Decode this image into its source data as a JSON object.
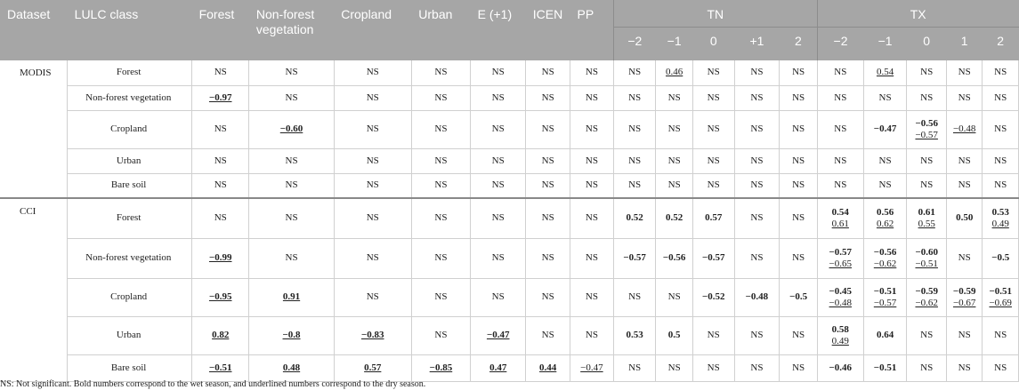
{
  "table": {
    "headers": {
      "dataset": "Dataset",
      "lulc_class": "LULC class",
      "forest": "Forest",
      "non_forest": "Non-forest vegetation",
      "cropland": "Cropland",
      "urban": "Urban",
      "e": "E (+1)",
      "icen": "ICEN",
      "pp": "PP",
      "tn": "TN",
      "tx": "TX",
      "tn_lags": [
        "−2",
        "−1",
        "0",
        "+1",
        "2"
      ],
      "tx_lags": [
        "−2",
        "−1",
        "0",
        "1",
        "2"
      ]
    },
    "datasets": [
      {
        "name": "MODIS",
        "rows": [
          {
            "class": "Forest",
            "cells": [
              [
                "NS"
              ],
              [
                "NS"
              ],
              [
                "NS"
              ],
              [
                "NS"
              ],
              [
                "NS"
              ],
              [
                "NS"
              ],
              [
                "NS"
              ],
              [
                "NS"
              ],
              [
                [
                  "0.46",
                  "u"
                ]
              ],
              [
                "NS"
              ],
              [
                "NS"
              ],
              [
                "NS"
              ],
              [
                "NS"
              ],
              [
                [
                  "0.54",
                  "u"
                ]
              ],
              [
                "NS"
              ],
              [
                "NS"
              ],
              [
                "NS"
              ]
            ]
          },
          {
            "class": "Non-forest vegetation",
            "cells": [
              [
                [
                  "−0.97",
                  "bu"
                ]
              ],
              [
                "NS"
              ],
              [
                "NS"
              ],
              [
                "NS"
              ],
              [
                "NS"
              ],
              [
                "NS"
              ],
              [
                "NS"
              ],
              [
                "NS"
              ],
              [
                "NS"
              ],
              [
                "NS"
              ],
              [
                "NS"
              ],
              [
                "NS"
              ],
              [
                "NS"
              ],
              [
                "NS"
              ],
              [
                "NS"
              ],
              [
                "NS"
              ],
              [
                "NS"
              ]
            ]
          },
          {
            "class": "Cropland",
            "cells": [
              [
                "NS"
              ],
              [
                [
                  "−0.60",
                  "bu"
                ]
              ],
              [
                "NS"
              ],
              [
                "NS"
              ],
              [
                "NS"
              ],
              [
                "NS"
              ],
              [
                "NS"
              ],
              [
                "NS"
              ],
              [
                "NS"
              ],
              [
                "NS"
              ],
              [
                "NS"
              ],
              [
                "NS"
              ],
              [
                "NS"
              ],
              [
                [
                  "−0.47",
                  "b"
                ]
              ],
              [
                [
                  "−0.56",
                  "b"
                ],
                [
                  "−0.57",
                  "u"
                ]
              ],
              [
                [
                  "−0.48",
                  "u"
                ]
              ],
              [
                "NS"
              ]
            ]
          },
          {
            "class": "Urban",
            "cells": [
              [
                "NS"
              ],
              [
                "NS"
              ],
              [
                "NS"
              ],
              [
                "NS"
              ],
              [
                "NS"
              ],
              [
                "NS"
              ],
              [
                "NS"
              ],
              [
                "NS"
              ],
              [
                "NS"
              ],
              [
                "NS"
              ],
              [
                "NS"
              ],
              [
                "NS"
              ],
              [
                "NS"
              ],
              [
                "NS"
              ],
              [
                "NS"
              ],
              [
                "NS"
              ],
              [
                "NS"
              ]
            ]
          },
          {
            "class": "Bare soil",
            "cells": [
              [
                "NS"
              ],
              [
                "NS"
              ],
              [
                "NS"
              ],
              [
                "NS"
              ],
              [
                "NS"
              ],
              [
                "NS"
              ],
              [
                "NS"
              ],
              [
                "NS"
              ],
              [
                "NS"
              ],
              [
                "NS"
              ],
              [
                "NS"
              ],
              [
                "NS"
              ],
              [
                "NS"
              ],
              [
                "NS"
              ],
              [
                "NS"
              ],
              [
                "NS"
              ],
              [
                "NS"
              ]
            ]
          }
        ]
      },
      {
        "name": "CCI",
        "rows": [
          {
            "class": "Forest",
            "cells": [
              [
                "NS"
              ],
              [
                "NS"
              ],
              [
                "NS"
              ],
              [
                "NS"
              ],
              [
                "NS"
              ],
              [
                "NS"
              ],
              [
                "NS"
              ],
              [
                [
                  "0.52",
                  "b"
                ]
              ],
              [
                [
                  "0.52",
                  "b"
                ]
              ],
              [
                [
                  "0.57",
                  "b"
                ]
              ],
              [
                "NS"
              ],
              [
                "NS"
              ],
              [
                [
                  "0.54",
                  "b"
                ],
                [
                  "0.61",
                  "u"
                ]
              ],
              [
                [
                  "0.56",
                  "b"
                ],
                [
                  "0.62",
                  "u"
                ]
              ],
              [
                [
                  "0.61",
                  "b"
                ],
                [
                  "0.55",
                  "u"
                ]
              ],
              [
                [
                  "0.50",
                  "b"
                ]
              ],
              [
                [
                  "0.53",
                  "b"
                ],
                [
                  "0.49",
                  "u"
                ]
              ]
            ]
          },
          {
            "class": "Non-forest vegetation",
            "cells": [
              [
                [
                  "−0.99",
                  "bu"
                ]
              ],
              [
                "NS"
              ],
              [
                "NS"
              ],
              [
                "NS"
              ],
              [
                "NS"
              ],
              [
                "NS"
              ],
              [
                "NS"
              ],
              [
                [
                  "−0.57",
                  "b"
                ]
              ],
              [
                [
                  "−0.56",
                  "b"
                ]
              ],
              [
                [
                  "−0.57",
                  "b"
                ]
              ],
              [
                "NS"
              ],
              [
                "NS"
              ],
              [
                [
                  "−0.57",
                  "b"
                ],
                [
                  "−0.65",
                  "u"
                ]
              ],
              [
                [
                  "−0.56",
                  "b"
                ],
                [
                  "−0.62",
                  "u"
                ]
              ],
              [
                [
                  "−0.60",
                  "b"
                ],
                [
                  "−0.51",
                  "u"
                ]
              ],
              [
                "NS"
              ],
              [
                [
                  "−0.5",
                  "b"
                ]
              ]
            ]
          },
          {
            "class": "Cropland",
            "cells": [
              [
                [
                  "−0.95",
                  "bu"
                ]
              ],
              [
                [
                  "0.91",
                  "bu"
                ]
              ],
              [
                "NS"
              ],
              [
                "NS"
              ],
              [
                "NS"
              ],
              [
                "NS"
              ],
              [
                "NS"
              ],
              [
                "NS"
              ],
              [
                "NS"
              ],
              [
                [
                  "−0.52",
                  "b"
                ]
              ],
              [
                [
                  "−0.48",
                  "b"
                ]
              ],
              [
                [
                  "−0.5",
                  "b"
                ]
              ],
              [
                [
                  "−0.45",
                  "b"
                ],
                [
                  "−0.48",
                  "u"
                ]
              ],
              [
                [
                  "−0.51",
                  "b"
                ],
                [
                  "−0.57",
                  "u"
                ]
              ],
              [
                [
                  "−0.59",
                  "b"
                ],
                [
                  "−0.62",
                  "u"
                ]
              ],
              [
                [
                  "−0.59",
                  "b"
                ],
                [
                  "−0.67",
                  "u"
                ]
              ],
              [
                [
                  "−0.51",
                  "b"
                ],
                [
                  "−0.69",
                  "u"
                ]
              ]
            ]
          },
          {
            "class": "Urban",
            "cells": [
              [
                [
                  "0.82",
                  "bu"
                ]
              ],
              [
                [
                  "−0.8",
                  "bu"
                ]
              ],
              [
                [
                  "−0.83",
                  "bu"
                ]
              ],
              [
                "NS"
              ],
              [
                [
                  "−0.47",
                  "bu"
                ]
              ],
              [
                "NS"
              ],
              [
                "NS"
              ],
              [
                [
                  "0.53",
                  "b"
                ]
              ],
              [
                [
                  "0.5",
                  "b"
                ]
              ],
              [
                "NS"
              ],
              [
                "NS"
              ],
              [
                "NS"
              ],
              [
                [
                  "0.58",
                  "b"
                ],
                [
                  "0.49",
                  "u"
                ]
              ],
              [
                [
                  "0.64",
                  "b"
                ]
              ],
              [
                "NS"
              ],
              [
                "NS"
              ],
              [
                "NS"
              ]
            ]
          },
          {
            "class": "Bare soil",
            "cells": [
              [
                [
                  "−0.51",
                  "bu"
                ]
              ],
              [
                [
                  "0.48",
                  "bu"
                ]
              ],
              [
                [
                  "0.57",
                  "bu"
                ]
              ],
              [
                [
                  "−0.85",
                  "bu"
                ]
              ],
              [
                [
                  "0.47",
                  "bu"
                ]
              ],
              [
                [
                  "0.44",
                  "bu"
                ]
              ],
              [
                [
                  "−0.47",
                  "u"
                ]
              ],
              [
                "NS"
              ],
              [
                "NS"
              ],
              [
                "NS"
              ],
              [
                "NS"
              ],
              [
                "NS"
              ],
              [
                [
                  "−0.46",
                  "b"
                ]
              ],
              [
                [
                  "−0.51",
                  "b"
                ]
              ],
              [
                "NS"
              ],
              [
                "NS"
              ],
              [
                "NS"
              ]
            ]
          }
        ]
      }
    ],
    "footnote": "NS: Not significant. Bold numbers correspond to the wet season, and underlined numbers correspond to the dry season."
  }
}
